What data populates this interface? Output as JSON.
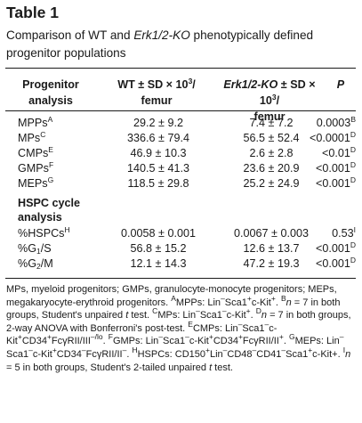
{
  "table": {
    "title": "Table 1",
    "caption_1": "Comparison of WT and ",
    "caption_em": "Erk1/2-KO",
    "caption_2": " phenotypically defined progenitor populations",
    "headers": {
      "progenitor_1": "Progenitor",
      "progenitor_2": "analysis",
      "wt_1": "WT ± SD × 10",
      "wt_sup": "3",
      "wt_2": "/",
      "wt_3": "femur",
      "ko_em": "Erk1/2-KO",
      "ko_1": " ± SD × 10",
      "ko_sup": "3",
      "ko_2": "/",
      "ko_3": "femur",
      "p": "P"
    },
    "progenitor_rows": [
      {
        "label": "MPPs",
        "label_sup": "A",
        "wt": "29.2 ± 9.2",
        "ko": "7.4 ± 7.2",
        "p": "0.0003",
        "p_sup": "B"
      },
      {
        "label": "MPs",
        "label_sup": "C",
        "wt": "336.6 ± 79.4",
        "ko": "56.5 ± 52.4",
        "p": "<0.0001",
        "p_sup": "D"
      },
      {
        "label": "CMPs",
        "label_sup": "E",
        "wt": "46.9 ± 10.3",
        "ko": "2.6 ± 2.8",
        "p": "<0.01",
        "p_sup": "D"
      },
      {
        "label": "GMPs",
        "label_sup": "F",
        "wt": "140.5 ± 41.3",
        "ko": "23.6 ± 20.9",
        "p": "<0.001",
        "p_sup": "D"
      },
      {
        "label": "MEPs",
        "label_sup": "G",
        "wt": "118.5 ± 29.8",
        "ko": "25.2 ± 24.9",
        "p": "<0.001",
        "p_sup": "D"
      }
    ],
    "hspc_section_1": "HSPC cycle",
    "hspc_section_2": "analysis",
    "hspc_rows": [
      {
        "label": "%HSPCs",
        "label_sup": "H",
        "label_sub": "",
        "label_tail": "",
        "wt": "0.0058 ± 0.001",
        "ko": "0.0067 ± 0.003",
        "p": "0.53",
        "p_sup": "I"
      },
      {
        "label": "%G",
        "label_sup": "",
        "label_sub": "1",
        "label_tail": "/S",
        "wt": "56.8 ± 15.2",
        "ko": "12.6 ± 13.7",
        "p": "<0.001",
        "p_sup": "D"
      },
      {
        "label": "%G",
        "label_sup": "",
        "label_sub": "2",
        "label_tail": "/M",
        "wt": "12.1 ± 14.3",
        "ko": "47.2 ± 19.3",
        "p": "<0.001",
        "p_sup": "D"
      }
    ],
    "footnote": {
      "t1": "MPs, myeloid progenitors; GMPs, granulocyte-monocyte progenitors; MEPs, megakaryocyte-erythroid progenitors. ",
      "sA": "A",
      "t2": "MPPs: Lin",
      "s1": "–",
      "t3": "Sca1",
      "s2": "+",
      "t4": "c-Kit",
      "s3": "+",
      "t5": ". ",
      "sB": "B",
      "n1": "n",
      "t6": " = 7 in both groups, Student's unpaired ",
      "tt1": "t",
      "t7": " test. ",
      "sC": "C",
      "t8": "MPs: Lin",
      "s4": "–",
      "t9": "Sca1",
      "s5": "–",
      "t10": "c-Kit",
      "s6": "+",
      "t11": ". ",
      "sD": "D",
      "n2": "n",
      "t12": " = 7 in both groups, 2-way ANOVA with Bonferroni's post-test. ",
      "sE": "E",
      "t13": "CMPs: Lin",
      "s7": "–",
      "t14": "Sca1",
      "s8": "–",
      "t15": "c-Kit",
      "s9": "+",
      "t16": "CD34",
      "s10": "+",
      "t17": "FcγRII/III",
      "s11": "–/lo",
      "t18": ". ",
      "sF": "F",
      "t19": "GMPs: Lin",
      "s12": "–",
      "t20": "Sca1",
      "s13": "–",
      "t21": "c-Kit",
      "s14": "+",
      "t22": "CD34",
      "s15": "+",
      "t23": "FcγRII/II",
      "s16": "+",
      "t24": ". ",
      "sG": "G",
      "t25": "MEPs: Lin",
      "s17": "–",
      "t26": "Sca1",
      "s18": "–",
      "t27": "c-Kit",
      "s19": "+",
      "t28": "CD34",
      "s20": "–",
      "t29": "FcγRII/II",
      "s21": "–",
      "t30": ". ",
      "sH": "H",
      "t31": "HSPCs: CD150",
      "s22": "+",
      "t32": "Lin",
      "s23": "–",
      "t33": "CD48",
      "s24": "–",
      "t34": "CD41",
      "s25": "–",
      "t35": "Sca1",
      "s26": "+",
      "t36": "c-Kit+. ",
      "sI": "I",
      "n3": "n",
      "t37": " = 5 in both groups, Student's 2-tailed unpaired ",
      "tt2": "t",
      "t38": " test."
    }
  }
}
